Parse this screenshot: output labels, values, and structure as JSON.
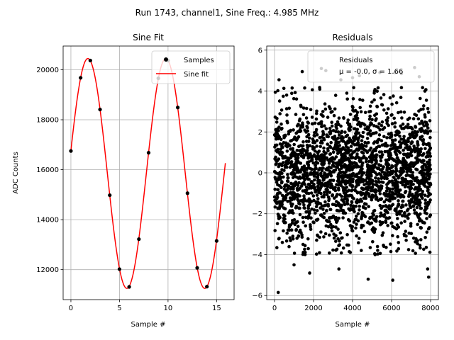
{
  "figure": {
    "suptitle": "Run 1743, channel1, Sine Freq.: 4.985 MHz"
  },
  "chart_data": [
    {
      "type": "line",
      "title": "Sine Fit",
      "xlabel": "Sample #",
      "ylabel": "ADC Counts",
      "xlim": [
        -0.8,
        16.8
      ],
      "ylim": [
        10800,
        20950
      ],
      "xticks": [
        0,
        5,
        10,
        15
      ],
      "yticks": [
        12000,
        14000,
        16000,
        18000,
        20000
      ],
      "grid": true,
      "legend": {
        "placement": "top-right",
        "entries": [
          "Samples",
          "Sine fit"
        ]
      },
      "colors": {
        "samples": "#000000",
        "fit": "#ff0000"
      },
      "series": [
        {
          "name": "Samples",
          "kind": "scatter",
          "x": [
            0,
            1,
            2,
            3,
            4,
            5,
            6,
            7,
            8,
            9,
            10,
            11,
            12,
            13,
            14,
            15
          ],
          "y": [
            16750,
            19680,
            20370,
            18410,
            14980,
            12020,
            11310,
            13220,
            16680,
            19660,
            20370,
            18490,
            15060,
            12070,
            11320,
            13150
          ]
        },
        {
          "name": "Sine fit",
          "kind": "line",
          "offset": 15850,
          "amplitude": 4600,
          "period": 8.02,
          "phase_sample": 1.75,
          "x_range": [
            0,
            15.9
          ]
        }
      ]
    },
    {
      "type": "scatter",
      "title": "Residuals",
      "xlabel": "Sample #",
      "ylabel": "",
      "xlim": [
        -400,
        8400
      ],
      "ylim": [
        -6.2,
        6.2
      ],
      "xticks": [
        0,
        2000,
        4000,
        6000,
        8000
      ],
      "yticks": [
        -6,
        -4,
        -2,
        0,
        2,
        4,
        6
      ],
      "grid": true,
      "legend": {
        "placement": "top-right",
        "line1": "Residuals",
        "line2": "μ = -0.0, σ = 1.66"
      },
      "colors": {
        "points": "#000000"
      },
      "series": [
        {
          "name": "Residuals",
          "n": 8000,
          "x_range": [
            0,
            7999
          ],
          "mean": -0.0,
          "std": 1.66,
          "band_low": -4.0,
          "band_high": 4.2,
          "outliers": [
            [
              190,
              -5.85
            ],
            [
              4800,
              -5.2
            ],
            [
              6060,
              -5.25
            ],
            [
              7900,
              -5.1
            ],
            [
              230,
              4.55
            ],
            [
              1420,
              4.95
            ],
            [
              2400,
              5.1
            ],
            [
              2630,
              5.0
            ],
            [
              3400,
              4.55
            ],
            [
              4000,
              4.65
            ],
            [
              4350,
              4.75
            ],
            [
              5400,
              4.9
            ],
            [
              6180,
              4.9
            ],
            [
              6500,
              4.85
            ],
            [
              7180,
              5.15
            ],
            [
              7420,
              4.7
            ],
            [
              1000,
              -4.5
            ],
            [
              1800,
              -4.9
            ],
            [
              3300,
              -4.7
            ],
            [
              7850,
              -4.7
            ]
          ]
        }
      ]
    }
  ]
}
